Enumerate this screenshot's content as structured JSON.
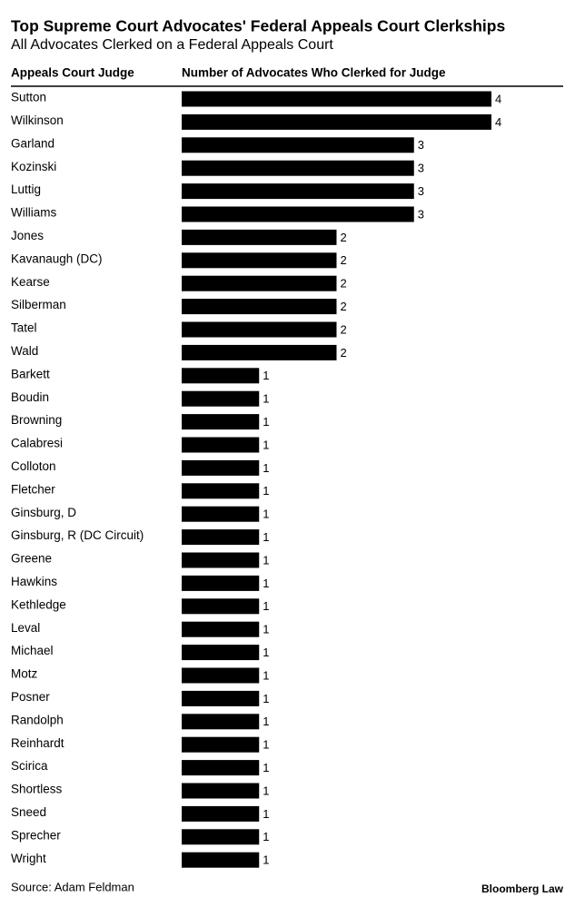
{
  "chart_data": {
    "type": "bar",
    "orientation": "horizontal",
    "title": "Top Supreme Court Advocates' Federal Appeals Court Clerkships",
    "subtitle": "All Advocates Clerked on a Federal Appeals Court",
    "category_header": "Appeals Court Judge",
    "value_header": "Number of Advocates Who Clerked for Judge",
    "source": "Source: Adam Feldman",
    "brand": "Bloomberg Law",
    "color": "#000000",
    "categories": [
      "Sutton",
      "Wilkinson",
      "Garland",
      "Kozinski",
      "Luttig",
      "Williams",
      "Jones",
      "Kavanaugh (DC)",
      "Kearse",
      "Silberman",
      "Tatel",
      "Wald",
      "Barkett",
      "Boudin",
      "Browning",
      "Calabresi",
      "Colloton",
      "Fletcher",
      "Ginsburg, D",
      "Ginsburg, R (DC Circuit)",
      "Greene",
      "Hawkins",
      "Kethledge",
      "Leval",
      "Michael",
      "Motz",
      "Posner",
      "Randolph",
      "Reinhardt",
      "Scirica",
      "Shortless",
      "Sneed",
      "Sprecher",
      "Wright"
    ],
    "values": [
      4,
      4,
      3,
      3,
      3,
      3,
      2,
      2,
      2,
      2,
      2,
      2,
      1,
      1,
      1,
      1,
      1,
      1,
      1,
      1,
      1,
      1,
      1,
      1,
      1,
      1,
      1,
      1,
      1,
      1,
      1,
      1,
      1,
      1
    ]
  }
}
